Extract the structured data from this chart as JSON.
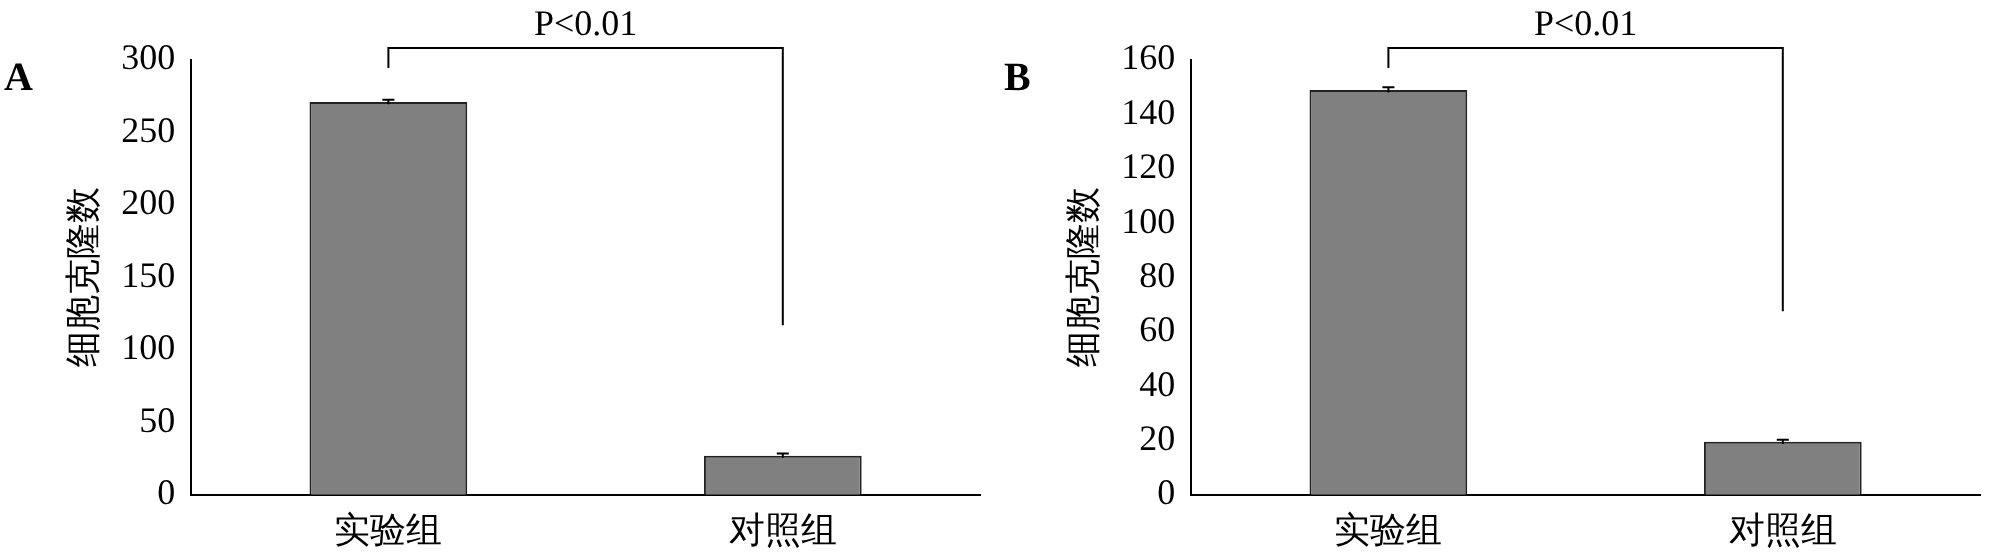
{
  "chart_data": [
    {
      "type": "bar",
      "title": "A",
      "ylabel": "细胞克隆数",
      "categories": [
        "实验组",
        "对照组"
      ],
      "values": [
        271,
        27
      ],
      "errors": [
        1.5,
        1.5
      ],
      "color": "#808080",
      "ylim": [
        0,
        300
      ],
      "yticks": [
        0,
        50,
        100,
        150,
        200,
        250,
        300
      ],
      "grid": false,
      "legend": false,
      "annotations": [
        "P<0.01"
      ]
    },
    {
      "type": "bar",
      "title": "B",
      "ylabel": "细胞克隆数",
      "categories": [
        "实验组",
        "对照组"
      ],
      "values": [
        149,
        19.5
      ],
      "errors": [
        1,
        0.8
      ],
      "color": "#808080",
      "ylim": [
        0,
        160
      ],
      "yticks": [
        0,
        20,
        40,
        60,
        80,
        100,
        120,
        140,
        160
      ],
      "grid": false,
      "legend": false,
      "annotations": [
        "P<0.01"
      ]
    }
  ]
}
